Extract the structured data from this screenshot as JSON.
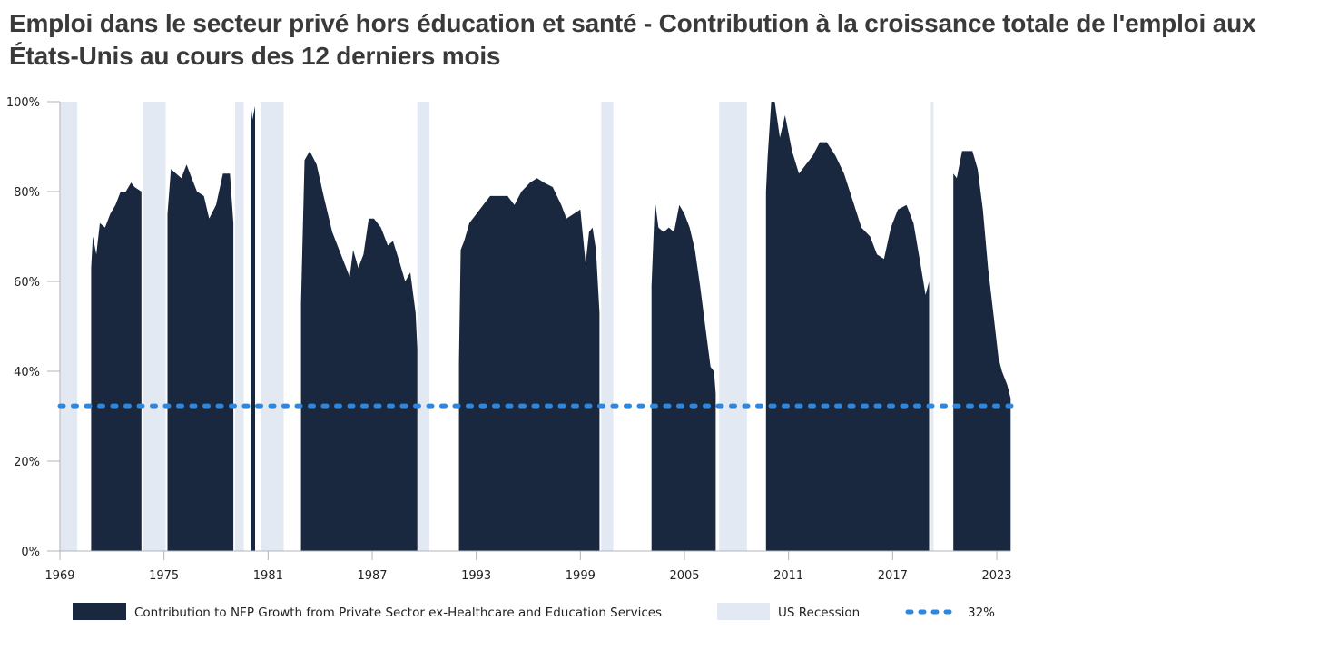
{
  "chart_data": {
    "type": "area",
    "title": "Emploi dans le secteur privé hors éducation et santé - Contribution à la croissance totale de l'emploi aux États-Unis au cours des 12 derniers mois",
    "xlabel": "",
    "ylabel": "",
    "xlim": [
      1969,
      2023.8
    ],
    "ylim": [
      0,
      100
    ],
    "x_ticks": [
      1969,
      1975,
      1981,
      1987,
      1993,
      1999,
      2005,
      2011,
      2017,
      2023
    ],
    "x_tick_labels": [
      "1969",
      "1975",
      "1981",
      "1987",
      "1993",
      "1999",
      "2005",
      "2011",
      "2017",
      "2023"
    ],
    "y_ticks": [
      0,
      20,
      40,
      60,
      80,
      100
    ],
    "y_tick_labels": [
      "0%",
      "20%",
      "40%",
      "60%",
      "80%",
      "100%"
    ],
    "grid": false,
    "legend_position": "bottom",
    "colors": {
      "area": "#19283f",
      "recession": "#e3e9f2",
      "reference": "#2a88e0",
      "axis": "#b0b4bb"
    },
    "series": [
      {
        "name": "Contribution to NFP Growth from Private Sector ex-Healthcare and Education Services",
        "segments": [
          {
            "x": [
              1970.8,
              1970.9,
              1971.1,
              1971.3,
              1971.6,
              1971.9,
              1972.2,
              1972.5,
              1972.8,
              1973.1,
              1973.3,
              1973.7
            ],
            "y": [
              63,
              70,
              66,
              73,
              72,
              75,
              77,
              80,
              80,
              82,
              81,
              80
            ]
          },
          {
            "x": [
              1975.2,
              1975.4,
              1975.7,
              1976.0,
              1976.3,
              1976.6,
              1976.9,
              1977.3,
              1977.6,
              1978.0,
              1978.4,
              1978.8,
              1979.0
            ],
            "y": [
              75,
              85,
              84,
              83,
              86,
              83,
              80,
              79,
              74,
              77,
              84,
              84,
              73
            ]
          },
          {
            "x": [
              1980.0,
              1980.1,
              1980.25
            ],
            "y": [
              100,
              96,
              99
            ]
          },
          {
            "x": [
              1982.9,
              1983.1,
              1983.4,
              1983.8,
              1984.2,
              1984.7,
              1985.3,
              1985.7,
              1985.9,
              1986.2,
              1986.5,
              1986.8,
              1987.1,
              1987.5,
              1987.9,
              1988.2,
              1988.6,
              1988.9,
              1989.2,
              1989.5,
              1989.6
            ],
            "y": [
              55,
              87,
              89,
              86,
              79,
              71,
              65,
              61,
              67,
              63,
              66,
              74,
              74,
              72,
              68,
              69,
              64,
              60,
              62,
              53,
              45
            ]
          },
          {
            "x": [
              1992.0,
              1992.1,
              1992.3,
              1992.6,
              1993.0,
              1993.4,
              1993.8,
              1994.3,
              1994.8,
              1995.2,
              1995.6,
              1996.1,
              1996.5,
              1996.9,
              1997.4,
              1997.9,
              1998.2,
              1998.6,
              1999.0,
              1999.3,
              1999.5,
              1999.7,
              1999.9,
              2000.1
            ],
            "y": [
              42,
              67,
              69,
              73,
              75,
              77,
              79,
              79,
              79,
              77,
              80,
              82,
              83,
              82,
              81,
              77,
              74,
              75,
              76,
              64,
              71,
              72,
              67,
              53
            ]
          },
          {
            "x": [
              2003.1,
              2003.3,
              2003.5,
              2003.8,
              2004.1,
              2004.4,
              2004.7,
              2005.0,
              2005.3,
              2005.6,
              2005.9,
              2006.2,
              2006.5,
              2006.7,
              2006.8
            ],
            "y": [
              59,
              78,
              72,
              71,
              72,
              71,
              77,
              75,
              72,
              67,
              59,
              50,
              41,
              40,
              35
            ]
          },
          {
            "x": [
              2009.7,
              2009.8,
              2010.0,
              2010.2,
              2010.5,
              2010.8,
              2011.2,
              2011.6,
              2012.0,
              2012.4,
              2012.8,
              2013.2,
              2013.7,
              2014.2,
              2014.7,
              2015.2,
              2015.7,
              2016.1,
              2016.5,
              2016.9,
              2017.3,
              2017.8,
              2018.2,
              2018.6,
              2018.9,
              2019.1
            ],
            "y": [
              80,
              88,
              100,
              100,
              92,
              97,
              89,
              84,
              86,
              88,
              91,
              91,
              88,
              84,
              78,
              72,
              70,
              66,
              65,
              72,
              76,
              77,
              73,
              64,
              57,
              60
            ]
          },
          {
            "x": [
              2020.5,
              2020.7,
              2021.0,
              2021.3,
              2021.6,
              2021.9,
              2022.2,
              2022.5,
              2022.8,
              2023.1,
              2023.3,
              2023.6,
              2023.8
            ],
            "y": [
              84,
              83,
              89,
              89,
              89,
              85,
              76,
              63,
              53,
              43,
              40,
              37,
              34
            ]
          }
        ]
      }
    ],
    "recessions": [
      [
        1969.0,
        1970.0
      ],
      [
        1973.8,
        1975.1
      ],
      [
        1979.1,
        1979.6
      ],
      [
        1980.56,
        1981.9
      ],
      [
        1989.6,
        1990.3
      ],
      [
        2000.2,
        2000.9
      ],
      [
        2007.0,
        2008.6
      ],
      [
        2019.2,
        2019.3
      ]
    ],
    "reference_line": {
      "value": 32.3,
      "label": "32%"
    }
  },
  "legend": {
    "items": [
      {
        "label": "Contribution to NFP Growth from Private Sector ex-Healthcare and Education Services"
      },
      {
        "label": "US Recession"
      },
      {
        "label": "32%"
      }
    ]
  }
}
